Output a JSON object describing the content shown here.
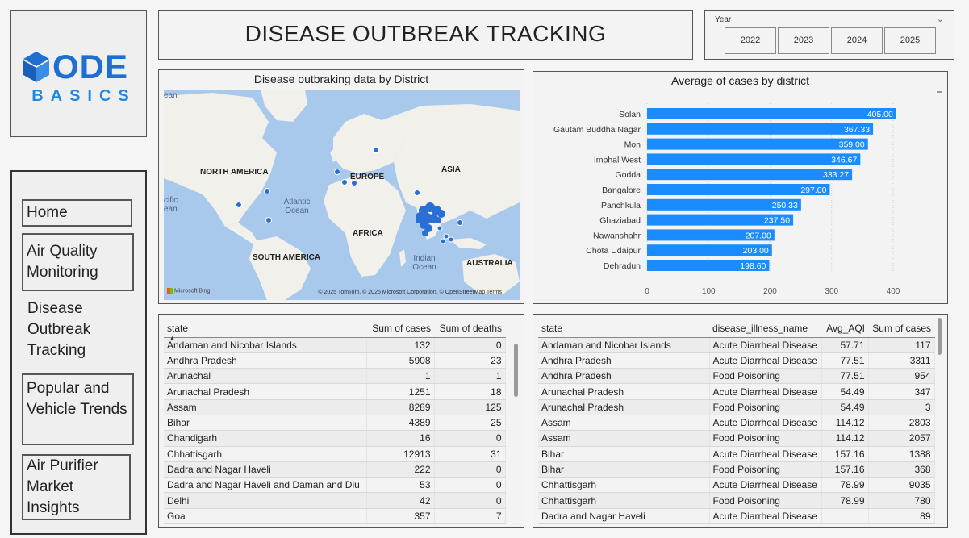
{
  "logo": {
    "word": "ODE",
    "sub": "BASICS",
    "color": "#1f6fd1"
  },
  "nav": {
    "items": [
      {
        "label": "Home",
        "active": false
      },
      {
        "label": "Air Quality Monitoring",
        "active": false
      },
      {
        "label": "Disease Outbreak Tracking",
        "active": true
      },
      {
        "label": "Popular and Vehicle Trends",
        "active": false
      },
      {
        "label": "Air Purifier Market Insights",
        "active": false
      }
    ]
  },
  "title": "DISEASE OUTBREAK TRACKING",
  "year_slicer": {
    "label": "Year",
    "options": [
      "2022",
      "2023",
      "2024",
      "2025"
    ]
  },
  "map": {
    "title": "Disease outbraking data by District",
    "labels": {
      "north_america": "NORTH AMERICA",
      "europe": "EUROPE",
      "asia": "ASIA",
      "africa": "AFRICA",
      "south_america": "SOUTH AMERICA",
      "australia": "AUSTRALIA",
      "atlantic": "Atlantic Ocean",
      "indian": "Indian Ocean",
      "pacific": "cific ean",
      "ocean_top": "ean"
    },
    "bing": "Microsoft Bing",
    "attribution": "© 2025 TomTom, © 2025 Microsoft Corporation, © OpenStreetMap  Terms",
    "colors": {
      "water": "#a8c8ec",
      "land": "#f2f0ea",
      "marker": "#2a6fd6"
    }
  },
  "chart_data": {
    "type": "bar",
    "orientation": "horizontal",
    "title": "Average of cases by district",
    "categories": [
      "Solan",
      "Gautam Buddha Nagar",
      "Mon",
      "Imphal West",
      "Godda",
      "Bangalore",
      "Panchkula",
      "Ghaziabad",
      "Nawanshahr",
      "Chota Udaipur",
      "Dehradun"
    ],
    "values": [
      405.0,
      367.33,
      359.0,
      346.67,
      333.27,
      297.0,
      250.33,
      237.5,
      207.0,
      203.0,
      198.6
    ],
    "value_labels": [
      "405.00",
      "367.33",
      "359.00",
      "346.67",
      "333.27",
      "297.00",
      "250.33",
      "237.50",
      "207.00",
      "203.00",
      "198.60"
    ],
    "xlim": [
      0,
      400
    ],
    "x_ticks": [
      "0",
      "100",
      "200",
      "300",
      "400"
    ],
    "bar_color": "#1a8cff",
    "grid": true
  },
  "table1": {
    "headers": [
      "state",
      "Sum of cases",
      "Sum of deaths"
    ],
    "rows": [
      [
        "Andaman and Nicobar Islands",
        "132",
        "0"
      ],
      [
        "Andhra Pradesh",
        "5908",
        "23"
      ],
      [
        "Arunachal",
        "1",
        "1"
      ],
      [
        "Arunachal Pradesh",
        "1251",
        "18"
      ],
      [
        "Assam",
        "8289",
        "125"
      ],
      [
        "Bihar",
        "4389",
        "25"
      ],
      [
        "Chandigarh",
        "16",
        "0"
      ],
      [
        "Chhattisgarh",
        "12913",
        "31"
      ],
      [
        "Dadra and Nagar Haveli",
        "222",
        "0"
      ],
      [
        "Dadra and Nagar Haveli and Daman and Diu",
        "53",
        "0"
      ],
      [
        "Delhi",
        "42",
        "0"
      ],
      [
        "Goa",
        "357",
        "7"
      ]
    ]
  },
  "table2": {
    "headers": [
      "state",
      "disease_illness_name",
      "Avg_AQI",
      "Sum of cases"
    ],
    "rows": [
      [
        "Andaman and Nicobar Islands",
        "Acute Diarrheal Disease",
        "57.71",
        "117"
      ],
      [
        "Andhra Pradesh",
        "Acute Diarrheal Disease",
        "77.51",
        "3311"
      ],
      [
        "Andhra Pradesh",
        "Food Poisoning",
        "77.51",
        "954"
      ],
      [
        "Arunachal Pradesh",
        "Acute Diarrheal Disease",
        "54.49",
        "347"
      ],
      [
        "Arunachal Pradesh",
        "Food Poisoning",
        "54.49",
        "3"
      ],
      [
        "Assam",
        "Acute Diarrheal Disease",
        "114.12",
        "2803"
      ],
      [
        "Assam",
        "Food Poisoning",
        "114.12",
        "2057"
      ],
      [
        "Bihar",
        "Acute Diarrheal Disease",
        "157.16",
        "1388"
      ],
      [
        "Bihar",
        "Food Poisoning",
        "157.16",
        "368"
      ],
      [
        "Chhattisgarh",
        "Acute Diarrheal Disease",
        "78.99",
        "9035"
      ],
      [
        "Chhattisgarh",
        "Food Poisoning",
        "78.99",
        "780"
      ],
      [
        "Dadra and Nagar Haveli",
        "Acute Diarrheal Disease",
        "",
        "89"
      ]
    ]
  }
}
